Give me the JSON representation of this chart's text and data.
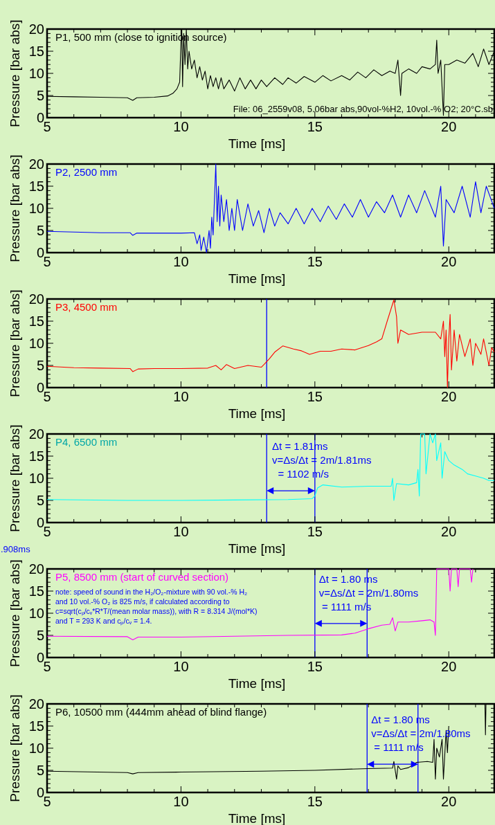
{
  "chart_data": [
    {
      "type": "line",
      "title": "P1, 500 mm (close to ignition source)",
      "xlabel": "Time [ms]",
      "ylabel": "Pressure [bar abs]",
      "xlim": [
        5,
        21.7
      ],
      "ylim": [
        0,
        20
      ],
      "xticks": [
        5,
        {
          "value": 6,
          "label": null
        },
        {
          "value": 7,
          "label": null
        },
        {
          "value": 8,
          "label": null
        },
        {
          "value": 9,
          "label": null
        },
        10,
        {
          "value": 11,
          "label": null
        },
        {
          "value": 12,
          "label": null
        },
        {
          "value": 13,
          "label": null
        },
        {
          "value": 14,
          "label": null
        },
        15,
        {
          "value": 16,
          "label": null
        },
        {
          "value": 17,
          "label": null
        },
        {
          "value": 18,
          "label": null
        },
        {
          "value": 19,
          "label": null
        },
        20,
        {
          "value": 21,
          "label": null
        }
      ],
      "yticks": [
        0,
        {
          "value": 1,
          "label": null
        },
        {
          "value": 2,
          "label": null
        },
        {
          "value": 3,
          "label": null
        },
        {
          "value": 4,
          "label": null
        },
        5,
        {
          "value": 6,
          "label": null
        },
        {
          "value": 7,
          "label": null
        },
        {
          "value": 8,
          "label": null
        },
        {
          "value": 9,
          "label": null
        },
        10,
        {
          "value": 11,
          "label": null
        },
        {
          "value": 12,
          "label": null
        },
        {
          "value": 13,
          "label": null
        },
        {
          "value": 14,
          "label": null
        },
        15,
        {
          "value": 16,
          "label": null
        },
        {
          "value": 17,
          "label": null
        },
        {
          "value": 18,
          "label": null
        },
        {
          "value": 19,
          "label": null
        },
        20
      ],
      "annotations": [
        "File: 06_2559v08, 5.06bar abs,90vol-%H2, 10vol.-% O2; 20°C.sb"
      ],
      "series": [
        {
          "color": "#000000",
          "x": [
            5,
            6,
            7,
            8,
            8.2,
            8.35,
            9,
            9.5,
            9.7,
            9.85,
            9.95,
            10,
            10.03,
            10.06,
            10.1,
            10.15,
            10.2,
            10.25,
            10.3,
            10.4,
            10.5,
            10.6,
            10.7,
            10.8,
            10.9,
            11,
            11.1,
            11.2,
            11.3,
            11.4,
            11.5,
            11.6,
            11.8,
            12,
            12.2,
            12.4,
            12.6,
            12.8,
            13,
            13.2,
            13.5,
            13.8,
            14,
            14.3,
            14.6,
            15,
            15.3,
            15.6,
            16,
            16.3,
            16.6,
            16.9,
            17.2,
            17.5,
            17.8,
            18,
            18.1,
            18.15,
            18.2,
            18.25,
            18.5,
            18.8,
            19,
            19.3,
            19.5,
            19.55,
            19.6,
            19.7,
            19.8,
            19.85,
            20,
            20.3,
            20.6,
            20.9,
            21.1,
            21.3,
            21.5,
            21.7
          ],
          "values": [
            4.8,
            4.7,
            4.6,
            4.5,
            3.9,
            4.5,
            4.6,
            4.9,
            5.5,
            6.5,
            8,
            17,
            20,
            7,
            19,
            12,
            20,
            11,
            15,
            11,
            13,
            9,
            11.5,
            8.5,
            10.5,
            6.5,
            9.5,
            7,
            9,
            6.5,
            9,
            6.5,
            8.5,
            6,
            9,
            6.5,
            8.5,
            6.5,
            8.5,
            7,
            9,
            7.5,
            9,
            7.8,
            9.3,
            8,
            9.5,
            8.3,
            9.5,
            8.5,
            10.3,
            9,
            10.8,
            9.5,
            10.5,
            10,
            13,
            9,
            5,
            10,
            11,
            10,
            11.5,
            11,
            12,
            17.5,
            10,
            13,
            0.5,
            12,
            12,
            13,
            12.3,
            14.5,
            11.5,
            15.5,
            12,
            15
          ]
        }
      ]
    },
    {
      "type": "line",
      "title": "P2, 2500 mm",
      "xlabel": "Time [ms]",
      "ylabel": "Pressure [bar abs]",
      "xlim": [
        5,
        21.7
      ],
      "ylim": [
        0,
        20
      ],
      "xticks": [
        5,
        {
          "value": 6,
          "label": null
        },
        {
          "value": 7,
          "label": null
        },
        {
          "value": 8,
          "label": null
        },
        {
          "value": 9,
          "label": null
        },
        10,
        {
          "value": 11,
          "label": null
        },
        {
          "value": 12,
          "label": null
        },
        {
          "value": 13,
          "label": null
        },
        {
          "value": 14,
          "label": null
        },
        15,
        {
          "value": 16,
          "label": null
        },
        {
          "value": 17,
          "label": null
        },
        {
          "value": 18,
          "label": null
        },
        {
          "value": 19,
          "label": null
        },
        20,
        {
          "value": 21,
          "label": null
        }
      ],
      "yticks": [
        0,
        {
          "value": 1,
          "label": null
        },
        {
          "value": 2,
          "label": null
        },
        {
          "value": 3,
          "label": null
        },
        {
          "value": 4,
          "label": null
        },
        5,
        {
          "value": 6,
          "label": null
        },
        {
          "value": 7,
          "label": null
        },
        {
          "value": 8,
          "label": null
        },
        {
          "value": 9,
          "label": null
        },
        10,
        {
          "value": 11,
          "label": null
        },
        {
          "value": 12,
          "label": null
        },
        {
          "value": 13,
          "label": null
        },
        {
          "value": 14,
          "label": null
        },
        15,
        {
          "value": 16,
          "label": null
        },
        {
          "value": 17,
          "label": null
        },
        {
          "value": 18,
          "label": null
        },
        {
          "value": 19,
          "label": null
        },
        20
      ],
      "series": [
        {
          "color": "#0000ff",
          "x": [
            5,
            7,
            8.1,
            8.2,
            8.35,
            9,
            10,
            10.5,
            10.6,
            10.7,
            10.75,
            10.85,
            10.95,
            11.05,
            11.1,
            11.15,
            11.2,
            11.3,
            11.35,
            11.4,
            11.45,
            11.5,
            11.6,
            11.7,
            11.8,
            11.9,
            12,
            12.1,
            12.3,
            12.5,
            12.7,
            12.9,
            13.1,
            13.3,
            13.5,
            13.7,
            14,
            14.3,
            14.6,
            14.9,
            15.2,
            15.5,
            15.8,
            16.1,
            16.4,
            16.7,
            17,
            17.3,
            17.6,
            17.9,
            18.2,
            18.5,
            18.8,
            19.1,
            19.5,
            19.7,
            19.8,
            19.9,
            20.2,
            20.5,
            20.8,
            21,
            21.2,
            21.4,
            21.7
          ],
          "values": [
            4.8,
            4.5,
            4.5,
            3.9,
            4.4,
            4.4,
            4.4,
            4.5,
            2,
            4,
            0.5,
            3.5,
            0,
            5,
            1,
            8,
            4,
            20,
            7,
            15,
            6,
            13,
            7,
            12,
            5,
            10,
            5,
            12,
            5,
            11,
            6,
            9.5,
            4.5,
            10,
            6,
            9,
            6.5,
            10,
            6.5,
            10,
            7,
            10.5,
            7.5,
            11,
            8,
            12,
            8,
            11.5,
            9,
            13,
            8,
            13,
            9,
            14,
            8,
            15,
            1.5,
            12,
            9,
            15,
            8,
            16,
            9,
            15,
            10
          ]
        }
      ]
    },
    {
      "type": "line",
      "title": "P3, 4500 mm",
      "xlabel": "Time [ms]",
      "ylabel": "Pressure [bar abs]",
      "xlim": [
        5,
        21.7
      ],
      "ylim": [
        0,
        20
      ],
      "xticks": [
        5,
        {
          "value": 6,
          "label": null
        },
        {
          "value": 7,
          "label": null
        },
        {
          "value": 8,
          "label": null
        },
        {
          "value": 9,
          "label": null
        },
        10,
        {
          "value": 11,
          "label": null
        },
        {
          "value": 12,
          "label": null
        },
        {
          "value": 13,
          "label": null
        },
        {
          "value": 14,
          "label": null
        },
        15,
        {
          "value": 16,
          "label": null
        },
        {
          "value": 17,
          "label": null
        },
        {
          "value": 18,
          "label": null
        },
        {
          "value": 19,
          "label": null
        },
        20,
        {
          "value": 21,
          "label": null
        }
      ],
      "yticks": [
        0,
        {
          "value": 1,
          "label": null
        },
        {
          "value": 2,
          "label": null
        },
        {
          "value": 3,
          "label": null
        },
        {
          "value": 4,
          "label": null
        },
        5,
        {
          "value": 6,
          "label": null
        },
        {
          "value": 7,
          "label": null
        },
        {
          "value": 8,
          "label": null
        },
        {
          "value": 9,
          "label": null
        },
        10,
        {
          "value": 11,
          "label": null
        },
        {
          "value": 12,
          "label": null
        },
        {
          "value": 13,
          "label": null
        },
        {
          "value": 14,
          "label": null
        },
        15,
        {
          "value": 16,
          "label": null
        },
        {
          "value": 17,
          "label": null
        },
        {
          "value": 18,
          "label": null
        },
        {
          "value": 19,
          "label": null
        },
        20
      ],
      "ref_lines": [
        {
          "axis": "x",
          "value": 13.2,
          "color": "#0000ff"
        }
      ],
      "series": [
        {
          "color": "#ff0000",
          "x": [
            5,
            6,
            7,
            8.1,
            8.2,
            8.4,
            9,
            10,
            11,
            11.3,
            11.5,
            11.7,
            12,
            12.5,
            13,
            13.1,
            13.3,
            13.5,
            13.8,
            14.2,
            14.5,
            14.8,
            15.2,
            15.6,
            16,
            16.5,
            17,
            17.3,
            17.5,
            17.7,
            17.95,
            18.05,
            18.1,
            18.2,
            18.5,
            19,
            19.5,
            19.7,
            19.8,
            19.85,
            19.9,
            19.95,
            20,
            20.05,
            20.1,
            20.2,
            20.3,
            20.4,
            20.6,
            20.8,
            20.9,
            21,
            21.2,
            21.3,
            21.5,
            21.6,
            21.7
          ],
          "values": [
            4.8,
            4.5,
            4.4,
            4.3,
            3.6,
            4.2,
            4.3,
            4.3,
            4.4,
            5,
            4,
            5.2,
            4.3,
            5,
            4.6,
            5.2,
            6.5,
            8,
            9.4,
            8.7,
            8.3,
            7.5,
            8.2,
            8.2,
            8.7,
            8.5,
            9.5,
            10.3,
            11,
            15,
            19.8,
            16,
            10,
            13,
            12,
            12.5,
            12.5,
            11,
            15,
            7,
            13,
            0,
            11,
            16.5,
            4,
            13,
            6,
            12,
            7,
            11,
            5,
            10,
            7.5,
            11,
            5,
            9,
            8
          ]
        }
      ]
    },
    {
      "type": "line",
      "title": "P4, 6500 mm",
      "xlabel": "Time [ms]",
      "ylabel": "Pressure [bar abs]",
      "xlim": [
        5,
        21.7
      ],
      "ylim": [
        0,
        20
      ],
      "xticks": [
        5,
        {
          "value": 6,
          "label": null
        },
        {
          "value": 7,
          "label": null
        },
        {
          "value": 8,
          "label": null
        },
        {
          "value": 9,
          "label": null
        },
        10,
        {
          "value": 11,
          "label": null
        },
        {
          "value": 12,
          "label": null
        },
        {
          "value": 13,
          "label": null
        },
        {
          "value": 14,
          "label": null
        },
        15,
        {
          "value": 16,
          "label": null
        },
        {
          "value": 17,
          "label": null
        },
        {
          "value": 18,
          "label": null
        },
        {
          "value": 19,
          "label": null
        },
        20,
        {
          "value": 21,
          "label": null
        }
      ],
      "yticks": [
        0,
        {
          "value": 1,
          "label": null
        },
        {
          "value": 2,
          "label": null
        },
        {
          "value": 3,
          "label": null
        },
        {
          "value": 4,
          "label": null
        },
        5,
        {
          "value": 6,
          "label": null
        },
        {
          "value": 7,
          "label": null
        },
        {
          "value": 8,
          "label": null
        },
        {
          "value": 9,
          "label": null
        },
        10,
        {
          "value": 11,
          "label": null
        },
        {
          "value": 12,
          "label": null
        },
        {
          "value": 13,
          "label": null
        },
        {
          "value": 14,
          "label": null
        },
        15,
        {
          "value": 16,
          "label": null
        },
        {
          "value": 17,
          "label": null
        },
        {
          "value": 18,
          "label": null
        },
        {
          "value": 19,
          "label": null
        },
        20
      ],
      "ref_lines": [
        {
          "axis": "x",
          "value": 13.2,
          "color": "#0000ff"
        },
        {
          "axis": "x",
          "value": 15.0,
          "color": "#0000ff"
        }
      ],
      "annotations": [
        {
          "text": "Δt = 1.81ms\nv=Δs/Δt = 2m/1.81ms\n  = 1102 m/s",
          "x": 13.3,
          "y": 16.4
        }
      ],
      "series": [
        {
          "color": "#00ffff",
          "x": [
            5,
            8,
            10,
            12,
            14,
            14.9,
            15,
            15.1,
            15.3,
            16,
            17,
            17.85,
            17.9,
            17.95,
            18.05,
            18.5,
            18.8,
            18.85,
            18.9,
            18.95,
            19.1,
            19.15,
            19.3,
            19.4,
            19.5,
            19.55,
            19.7,
            19.75,
            19.85,
            20,
            20.2,
            20.5,
            20.7,
            21,
            21.3,
            21.5,
            21.7
          ],
          "values": [
            5.2,
            5,
            5,
            5.1,
            5.2,
            5.4,
            6,
            7.8,
            8.5,
            8,
            8.2,
            8.2,
            10,
            5,
            8.8,
            8.5,
            9,
            12,
            6,
            20,
            20,
            11,
            20,
            18,
            20,
            14,
            18,
            10,
            16,
            14,
            13,
            12,
            11,
            10.5,
            10,
            9.5,
            9.5
          ]
        }
      ]
    },
    {
      "type": "line",
      "title": "P5, 8500 mm (start of curved section)",
      "xlabel": "Time [ms]",
      "ylabel": "Pressure [bar abs]",
      "xlim": [
        5,
        21.7
      ],
      "ylim": [
        0,
        20
      ],
      "xticks": [
        5,
        {
          "value": 6,
          "label": null
        },
        {
          "value": 7,
          "label": null
        },
        {
          "value": 8,
          "label": null
        },
        {
          "value": 9,
          "label": null
        },
        10,
        {
          "value": 11,
          "label": null
        },
        {
          "value": 12,
          "label": null
        },
        {
          "value": 13,
          "label": null
        },
        {
          "value": 14,
          "label": null
        },
        15,
        {
          "value": 16,
          "label": null
        },
        {
          "value": 17,
          "label": null
        },
        {
          "value": 18,
          "label": null
        },
        {
          "value": 19,
          "label": null
        },
        20,
        {
          "value": 21,
          "label": null
        }
      ],
      "yticks": [
        0,
        {
          "value": 1,
          "label": null
        },
        {
          "value": 2,
          "label": null
        },
        {
          "value": 3,
          "label": null
        },
        {
          "value": 4,
          "label": null
        },
        5,
        {
          "value": 6,
          "label": null
        },
        {
          "value": 7,
          "label": null
        },
        {
          "value": 8,
          "label": null
        },
        {
          "value": 9,
          "label": null
        },
        10,
        {
          "value": 11,
          "label": null
        },
        {
          "value": 12,
          "label": null
        },
        {
          "value": 13,
          "label": null
        },
        {
          "value": 14,
          "label": null
        },
        15,
        {
          "value": 16,
          "label": null
        },
        {
          "value": 17,
          "label": null
        },
        {
          "value": 18,
          "label": null
        },
        {
          "value": 19,
          "label": null
        },
        20
      ],
      "ref_lines": [
        {
          "axis": "x",
          "value": 15.0,
          "color": "#0000ff"
        },
        {
          "axis": "x",
          "value": 16.95,
          "color": "#0000ff"
        }
      ],
      "annotations": [
        "note: speed of sound in the H₂/O₂-mixture with 90 vol.-% H₂\nand 10 vol.-% O₂ is 825 m/s, if calculated according to\nc=sqrt(cₚ/cᵥ*R*T/(mean molar mass)), with R = 8.314 J/(mol*K)\nand T = 293 K and cₚ/cᵥ = 1.4.",
        ".908ms",
        {
          "text": "Δt = 1.80 ms\nv=Δs/Δt = 2m/1.80ms\n = 1111 m/s",
          "x": 15.05,
          "y": 16.9
        }
      ],
      "series": [
        {
          "color": "#ff00ff",
          "x": [
            5,
            8,
            8.2,
            8.4,
            10,
            12,
            14,
            16,
            16.5,
            17,
            17.5,
            17.8,
            17.9,
            18,
            18.1,
            18.5,
            19,
            19.3,
            19.45,
            19.5,
            19.55,
            20,
            20.05,
            20.1,
            20.3,
            20.35,
            20.4,
            20.8,
            20.85,
            20.9
          ],
          "values": [
            4.8,
            4.7,
            4,
            4.6,
            4.6,
            4.8,
            5,
            5.1,
            5.5,
            6.5,
            7.3,
            7.5,
            9,
            6,
            8,
            8,
            8.3,
            8.5,
            8,
            5,
            20,
            20,
            15,
            20,
            20,
            16,
            20,
            20,
            17,
            20
          ]
        }
      ]
    },
    {
      "type": "line",
      "title": "P6, 10500 mm (444mm ahead of blind flange)",
      "xlabel": "Time [ms]",
      "ylabel": "Pressure [bar abs]",
      "xlim": [
        5,
        21.7
      ],
      "ylim": [
        0,
        20
      ],
      "xticks": [
        5,
        {
          "value": 6,
          "label": null
        },
        {
          "value": 7,
          "label": null
        },
        {
          "value": 8,
          "label": null
        },
        {
          "value": 9,
          "label": null
        },
        10,
        {
          "value": 11,
          "label": null
        },
        {
          "value": 12,
          "label": null
        },
        {
          "value": 13,
          "label": null
        },
        {
          "value": 14,
          "label": null
        },
        15,
        {
          "value": 16,
          "label": null
        },
        {
          "value": 17,
          "label": null
        },
        {
          "value": 18,
          "label": null
        },
        {
          "value": 19,
          "label": null
        },
        20,
        {
          "value": 21,
          "label": null
        }
      ],
      "yticks": [
        0,
        {
          "value": 1,
          "label": null
        },
        {
          "value": 2,
          "label": null
        },
        {
          "value": 3,
          "label": null
        },
        {
          "value": 4,
          "label": null
        },
        5,
        {
          "value": 6,
          "label": null
        },
        {
          "value": 7,
          "label": null
        },
        {
          "value": 8,
          "label": null
        },
        {
          "value": 9,
          "label": null
        },
        10,
        {
          "value": 11,
          "label": null
        },
        {
          "value": 12,
          "label": null
        },
        {
          "value": 13,
          "label": null
        },
        {
          "value": 14,
          "label": null
        },
        15,
        {
          "value": 16,
          "label": null
        },
        {
          "value": 17,
          "label": null
        },
        {
          "value": 18,
          "label": null
        },
        {
          "value": 19,
          "label": null
        },
        20
      ],
      "ref_lines": [
        {
          "axis": "x",
          "value": 16.95,
          "color": "#0000ff"
        },
        {
          "axis": "x",
          "value": 18.85,
          "color": "#0000ff"
        }
      ],
      "annotations": [
        {
          "text": "Δt = 1.80 ms\nv=Δs/Δt = 2m/1.80ms\n = 1111 m/s",
          "x": 17.0,
          "y": 15.6
        }
      ],
      "series": [
        {
          "color": "#000000",
          "x": [
            5,
            8,
            8.2,
            8.4,
            10,
            13,
            15,
            17,
            17.9,
            17.95,
            18.05,
            18.1,
            18.2,
            18.5,
            18.8,
            19.2,
            19.4,
            19.45,
            19.5,
            19.55,
            19.65,
            19.75,
            19.8,
            19.9,
            19.95,
            20,
            20.5,
            21.35,
            21.37,
            21.39
          ],
          "values": [
            4.8,
            4.5,
            4.2,
            4.5,
            4.6,
            4.8,
            5,
            5.4,
            5.5,
            7,
            3,
            6,
            5.2,
            5.6,
            6.8,
            7,
            6.8,
            12,
            3,
            10,
            8,
            12,
            3,
            14,
            9,
            15,
            null,
            20,
            13,
            20
          ]
        }
      ]
    }
  ]
}
